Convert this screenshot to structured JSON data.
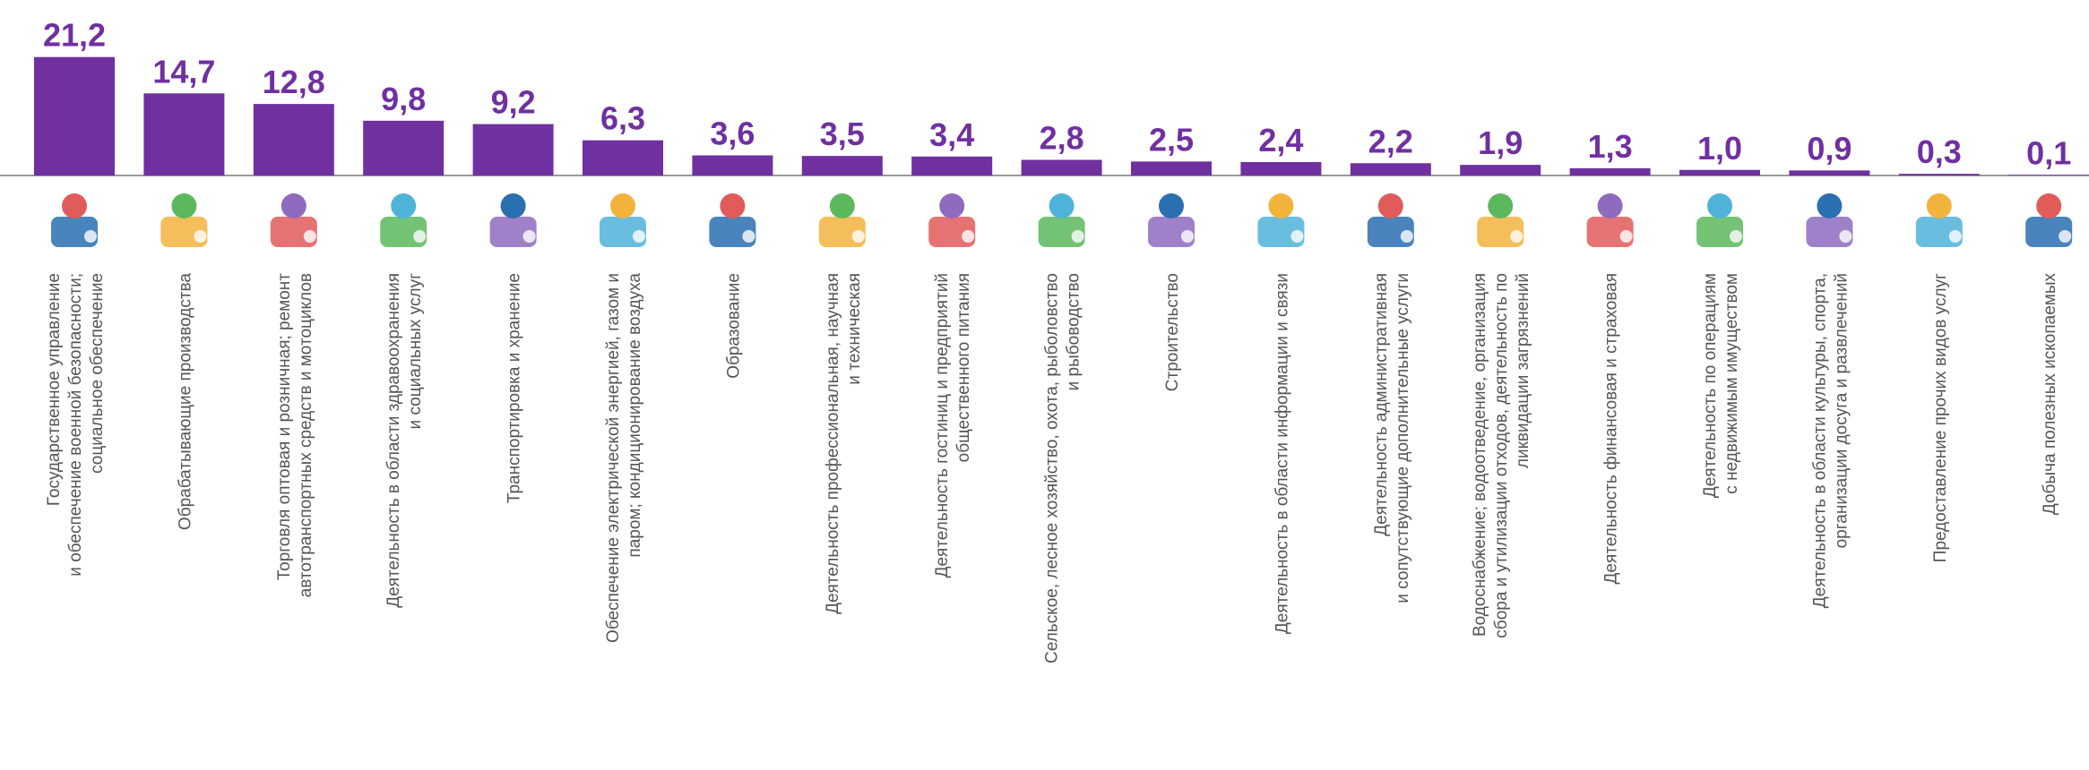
{
  "chart_data": {
    "type": "bar",
    "color": "#7030a0",
    "categories": [
      "Государственное управление\nи обеспечение военной безопасности;\nсоциальное обеспечение",
      "Обрабатывающие производства",
      "Торговля оптовая и розничная; ремонт\nавтотранспортных средств и мотоциклов",
      "Деятельность в области здравоохранения\nи социальных услуг",
      "Транспортировка и хранение",
      "Обеспечение электрической энергией, газом и\nпаром; кондиционирование воздуха",
      "Образование",
      "Деятельность  профессиональная, научная\nи техническая",
      "Деятельность гостиниц и предприятий\nобщественного питания",
      "Сельское, лесное хозяйство, охота, рыболовство\nи рыбоводство",
      "Строительство",
      "Деятельность в области информации и связи",
      "Деятельность административная\nи сопутствующие дополнительные услуги",
      "Водоснабжение;  водоотведение, организация\nсбора и утилизации отходов, деятельность по\nликвидации загрязнений",
      "Деятельность финансовая и страховая",
      "Деятельность по операциям\nс недвижимым имуществом",
      "Деятельность в области культуры, спорта,\nорганизации досуга и развлечений",
      "Предоставление прочих видов услуг",
      "Добыча полезных ископаемых"
    ],
    "values": [
      21.2,
      14.7,
      12.8,
      9.8,
      9.2,
      6.3,
      3.6,
      3.5,
      3.4,
      2.8,
      2.5,
      2.4,
      2.2,
      1.9,
      1.3,
      1.0,
      0.9,
      0.3,
      0.1
    ],
    "value_labels": [
      "21,2",
      "14,7",
      "12,8",
      "9,8",
      "9,2",
      "6,3",
      "3,6",
      "3,5",
      "3,4",
      "2,8",
      "2,5",
      "2,4",
      "2,2",
      "1,9",
      "1,3",
      "1,0",
      "0,9",
      "0,3",
      "0,1"
    ]
  }
}
